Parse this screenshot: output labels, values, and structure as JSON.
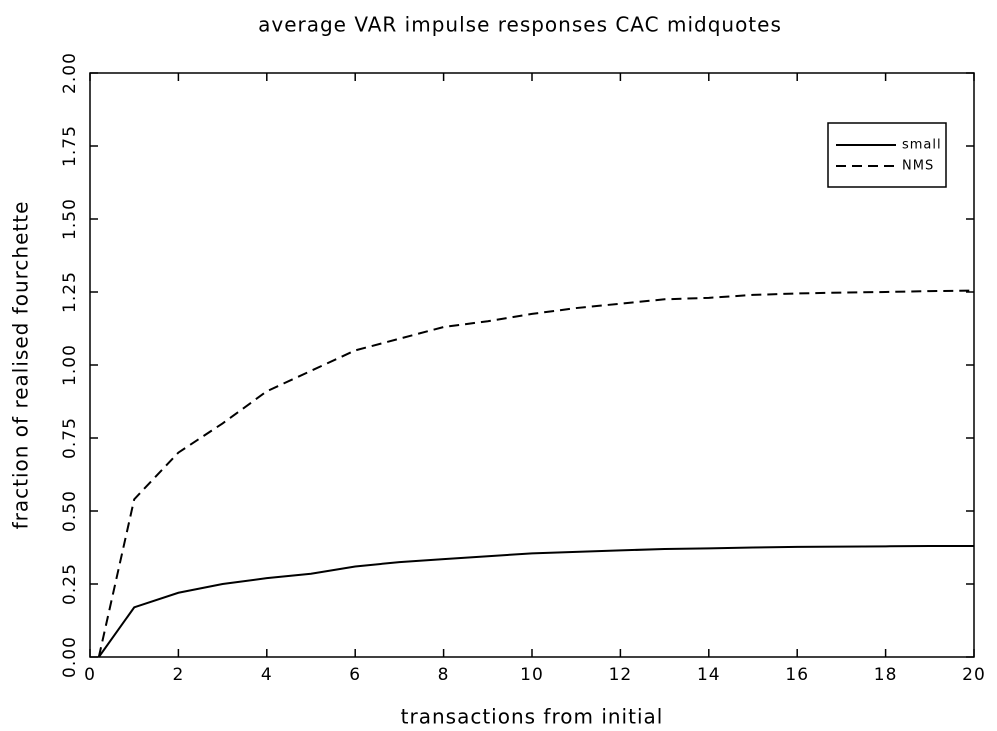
{
  "chart_data": {
    "type": "line",
    "title": "average VAR impulse responses CAC midquotes",
    "x_label": "transactions from initial",
    "y_label": "fraction of realised fourchette",
    "x": [
      0.2,
      1,
      2,
      3,
      4,
      5,
      6,
      7,
      8,
      9,
      10,
      11,
      12,
      13,
      14,
      15,
      16,
      17,
      18,
      19,
      20
    ],
    "series": [
      {
        "name": "small",
        "color": "#000000",
        "linestyle": "solid",
        "values": [
          0,
          0.17,
          0.22,
          0.25,
          0.27,
          0.285,
          0.31,
          0.325,
          0.335,
          0.345,
          0.355,
          0.36,
          0.365,
          0.37,
          0.372,
          0.375,
          0.377,
          0.378,
          0.379,
          0.38,
          0.38
        ]
      },
      {
        "name": "NMS",
        "color": "#000000",
        "linestyle": "dashed",
        "values": [
          0,
          0.54,
          0.7,
          0.8,
          0.91,
          0.98,
          1.05,
          1.09,
          1.13,
          1.15,
          1.175,
          1.195,
          1.21,
          1.225,
          1.23,
          1.24,
          1.245,
          1.248,
          1.25,
          1.253,
          1.255
        ]
      }
    ],
    "xlim": [
      0,
      20
    ],
    "xticks": [
      0,
      2,
      4,
      6,
      8,
      10,
      12,
      14,
      16,
      18,
      20
    ],
    "ylim": [
      0,
      2
    ],
    "yticks": [
      {
        "value": 0,
        "label": "0.00"
      },
      0.25,
      {
        "value": 0.5,
        "label": "0.50"
      },
      0.75,
      {
        "value": 1,
        "label": "1.00"
      },
      1.25,
      {
        "value": 1.5,
        "label": "1.50"
      },
      1.75,
      {
        "value": 2,
        "label": "2.00"
      }
    ],
    "grid": false,
    "legend": "upper right"
  }
}
